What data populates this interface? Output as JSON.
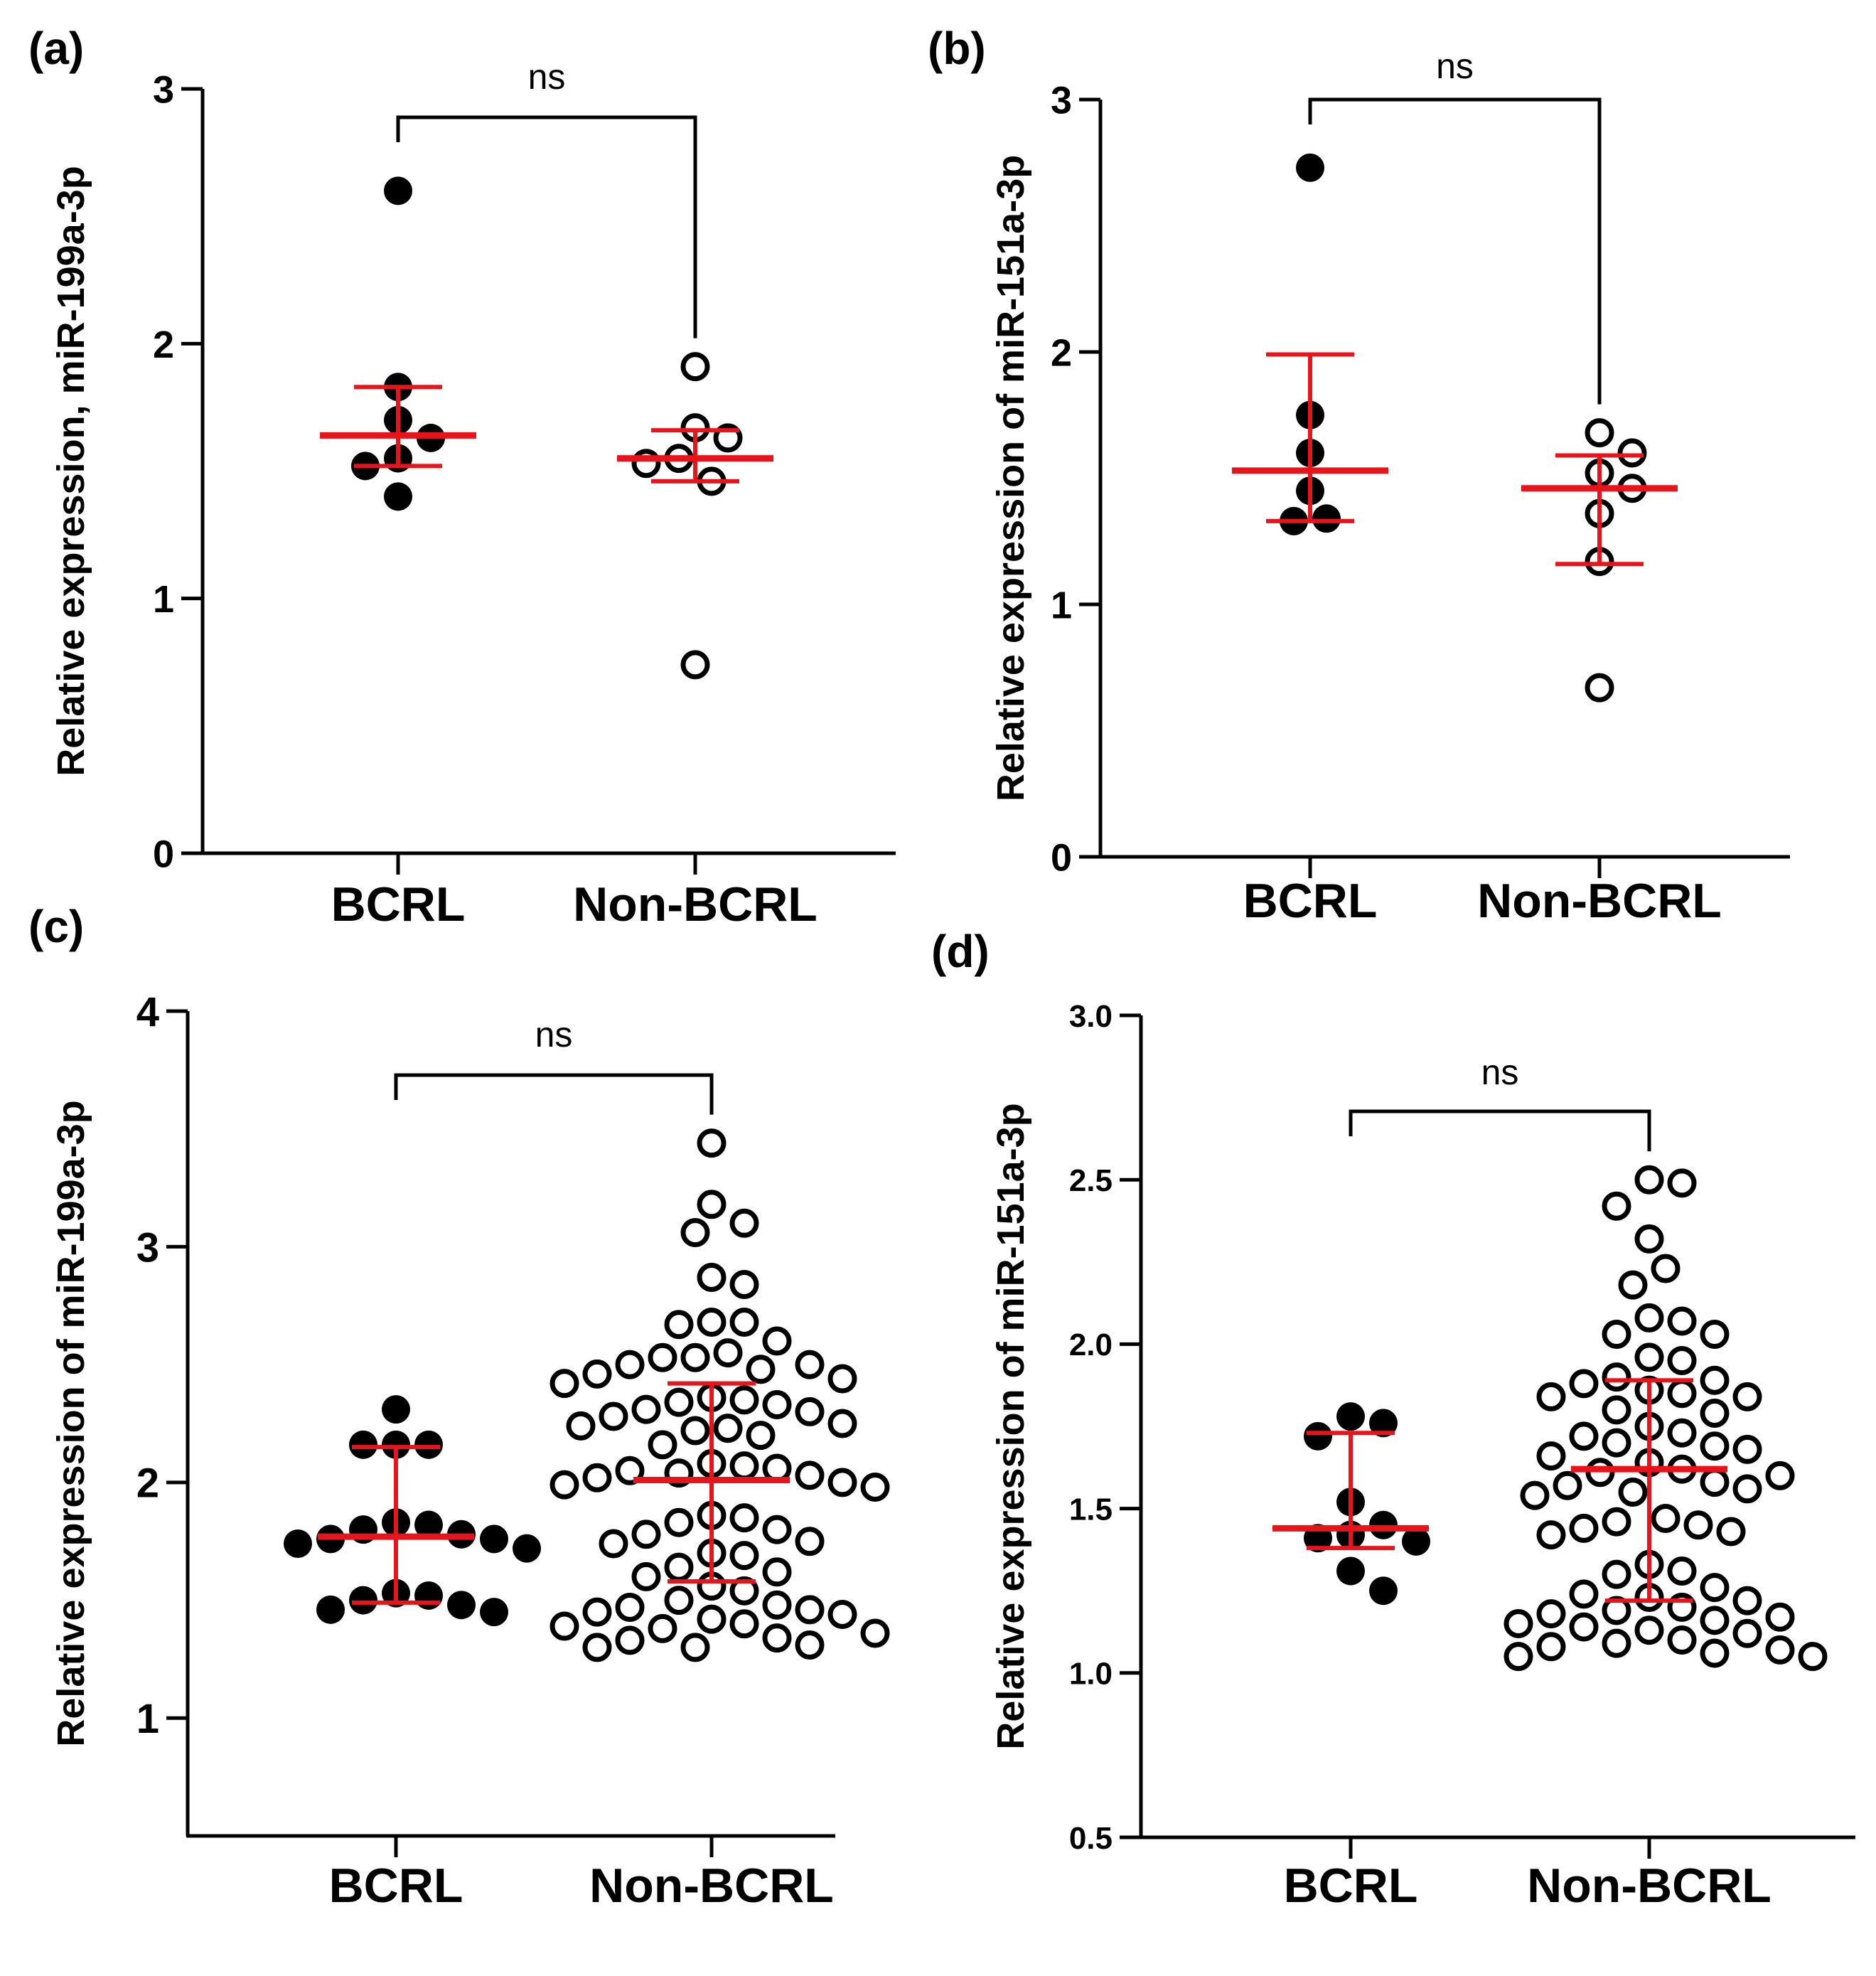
{
  "colors": {
    "axis": "#000000",
    "point": "#000000",
    "summary": "#e8141c"
  },
  "chart_data": [
    {
      "panel_label": "(a)",
      "type": "scatter",
      "ylabel": "Relative expression, miR-199a-3p",
      "ylim": [
        0,
        3
      ],
      "yticks": [
        "0",
        "1",
        "2",
        "3"
      ],
      "categories": [
        "BCRL",
        "Non-BCRL"
      ],
      "significance": "ns",
      "series": [
        {
          "name": "BCRL",
          "filled": true,
          "values": [
            2.6,
            1.83,
            1.7,
            1.63,
            1.55,
            1.52,
            1.4
          ],
          "mean": 1.64,
          "err_low": 1.52,
          "err_high": 1.83
        },
        {
          "name": "Non-BCRL",
          "filled": false,
          "values": [
            1.91,
            1.67,
            1.63,
            1.55,
            1.53,
            1.46,
            0.74
          ],
          "mean": 1.55,
          "err_low": 1.46,
          "err_high": 1.66
        }
      ]
    },
    {
      "panel_label": "(b)",
      "type": "scatter",
      "ylabel": "Relative expression of miR-151a-3p",
      "ylim": [
        0,
        3
      ],
      "yticks": [
        "0",
        "1",
        "2",
        "3"
      ],
      "categories": [
        "BCRL",
        "Non-BCRL"
      ],
      "significance": "ns",
      "series": [
        {
          "name": "BCRL",
          "filled": true,
          "values": [
            2.73,
            1.75,
            1.6,
            1.45,
            1.34,
            1.33
          ],
          "mean": 1.53,
          "err_low": 1.33,
          "err_high": 1.99
        },
        {
          "name": "Non-BCRL",
          "filled": false,
          "values": [
            1.68,
            1.6,
            1.52,
            1.46,
            1.36,
            1.17,
            0.67
          ],
          "mean": 1.46,
          "err_low": 1.16,
          "err_high": 1.59
        }
      ]
    },
    {
      "panel_label": "(c)",
      "type": "scatter",
      "ylabel": "Relative expression of miR-199a-3p",
      "ylim": [
        0.5,
        4
      ],
      "yticks": [
        "1",
        "2",
        "3",
        "4"
      ],
      "categories": [
        "BCRL",
        "Non-BCRL"
      ],
      "significance": "ns",
      "series": [
        {
          "name": "BCRL",
          "filled": true,
          "values": [
            2.31,
            2.16,
            2.16,
            2.16,
            1.83,
            1.82,
            1.8,
            1.78,
            1.76,
            1.76,
            1.74,
            1.72,
            1.53,
            1.52,
            1.5,
            1.48,
            1.46,
            1.45
          ],
          "mean": 1.77,
          "err_low": 1.49,
          "err_high": 2.15
        },
        {
          "name": "Non-BCRL",
          "filled": false,
          "values": [
            3.44,
            3.18,
            3.1,
            3.06,
            2.87,
            2.84,
            2.68,
            2.68,
            2.67,
            2.6,
            2.55,
            2.53,
            2.53,
            2.5,
            2.5,
            2.48,
            2.46,
            2.44,
            2.42,
            2.36,
            2.35,
            2.34,
            2.33,
            2.31,
            2.3,
            2.28,
            2.25,
            2.24,
            2.23,
            2.22,
            2.2,
            2.16,
            2.08,
            2.07,
            2.06,
            2.05,
            2.04,
            2.03,
            2.02,
            2.0,
            1.99,
            1.98,
            1.86,
            1.85,
            1.83,
            1.8,
            1.78,
            1.75,
            1.74,
            1.7,
            1.69,
            1.64,
            1.62,
            1.6,
            1.56,
            1.54,
            1.5,
            1.48,
            1.47,
            1.46,
            1.45,
            1.44,
            1.42,
            1.4,
            1.39,
            1.38,
            1.36,
            1.34,
            1.33,
            1.31,
            1.3,
            1.3
          ],
          "mean": 2.01,
          "err_low": 1.58,
          "err_high": 2.42
        }
      ]
    },
    {
      "panel_label": "(d)",
      "type": "scatter",
      "ylabel": "Relative expression of miR-151a-3p",
      "ylim": [
        0.5,
        3.0
      ],
      "yticks": [
        "0.5",
        "1.0",
        "1.5",
        "2.0",
        "2.5",
        "3.0"
      ],
      "categories": [
        "BCRL",
        "Non-BCRL"
      ],
      "significance": "ns",
      "series": [
        {
          "name": "BCRL",
          "filled": true,
          "values": [
            1.78,
            1.76,
            1.72,
            1.52,
            1.45,
            1.42,
            1.41,
            1.4,
            1.31,
            1.25
          ],
          "mean": 1.44,
          "err_low": 1.38,
          "err_high": 1.73
        },
        {
          "name": "Non-BCRL",
          "filled": false,
          "values": [
            2.5,
            2.49,
            2.42,
            2.32,
            2.23,
            2.18,
            2.08,
            2.07,
            2.03,
            2.03,
            1.96,
            1.95,
            1.9,
            1.89,
            1.88,
            1.86,
            1.85,
            1.84,
            1.84,
            1.8,
            1.79,
            1.75,
            1.73,
            1.72,
            1.7,
            1.69,
            1.68,
            1.66,
            1.64,
            1.62,
            1.61,
            1.6,
            1.58,
            1.57,
            1.56,
            1.55,
            1.54,
            1.47,
            1.46,
            1.45,
            1.44,
            1.43,
            1.42,
            1.33,
            1.31,
            1.3,
            1.26,
            1.24,
            1.23,
            1.22,
            1.2,
            1.19,
            1.18,
            1.17,
            1.16,
            1.15,
            1.14,
            1.13,
            1.12,
            1.1,
            1.09,
            1.08,
            1.07,
            1.06,
            1.05,
            1.05
          ],
          "mean": 1.62,
          "err_low": 1.22,
          "err_high": 1.89
        }
      ]
    }
  ]
}
